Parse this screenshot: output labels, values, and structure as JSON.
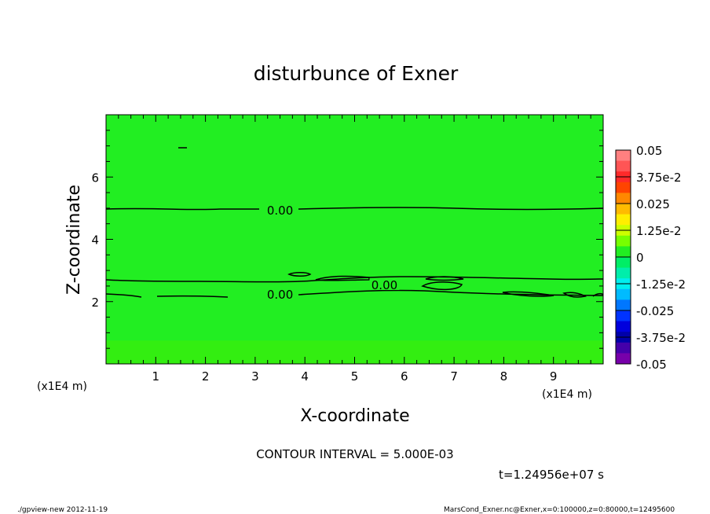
{
  "chart_data": {
    "type": "contour",
    "title": "disturbunce of Exner",
    "xlabel": "X-coordinate",
    "ylabel": "Z-coordinate",
    "x_unit": "(x1E4 m)",
    "x_unit_right": "(x1E4 m)",
    "xlim": [
      0,
      10
    ],
    "ylim": [
      0,
      8
    ],
    "x_ticks": [
      1,
      2,
      3,
      4,
      5,
      6,
      7,
      8,
      9
    ],
    "y_ticks": [
      2,
      4,
      6
    ],
    "contour_interval_text": "CONTOUR INTERVAL = 5.000E-03",
    "time_text": "t=1.24956e+07 s",
    "contour_labels": [
      {
        "text": "0.00",
        "x": 3.5,
        "y": 4.95
      },
      {
        "text": "0.00",
        "x": 3.5,
        "y": 2.25
      },
      {
        "text": "0.00",
        "x": 5.6,
        "y": 2.55
      }
    ],
    "field_colors": {
      "main": "#22ee22",
      "lower_band": "#33ee11",
      "lower_band_top_z": 0.75
    },
    "colorbar": {
      "labels": [
        "0.05",
        "3.75e-2",
        "0.025",
        "1.25e-2",
        "0",
        "-1.25e-2",
        "-0.025",
        "-3.75e-2",
        "-0.05"
      ],
      "colors": [
        "#ff8080",
        "#ff5555",
        "#ff2a2a",
        "#ff4400",
        "#ff8800",
        "#ffbb00",
        "#ffee00",
        "#ccff00",
        "#77ff00",
        "#22ee22",
        "#00ee66",
        "#00eeaa",
        "#00eeee",
        "#00bbff",
        "#0077ff",
        "#0033ff",
        "#0000dd",
        "#0000aa",
        "#4400aa",
        "#7700aa"
      ]
    }
  },
  "footer": {
    "left": "./gpview-new   2012-11-19",
    "right": "MarsCond_Exner.nc@Exner,x=0:100000,z=0:80000,t=12495600"
  }
}
